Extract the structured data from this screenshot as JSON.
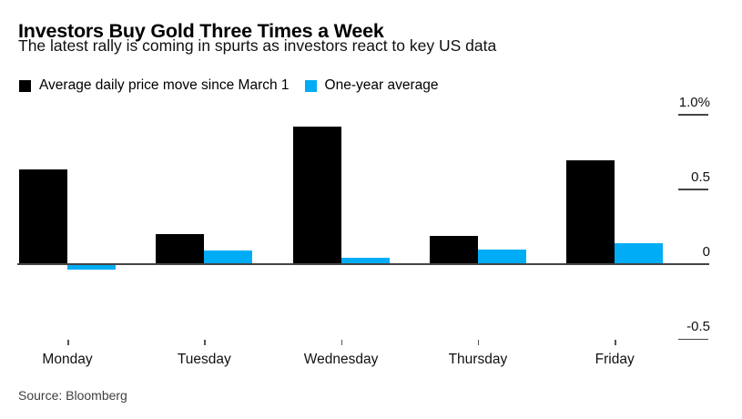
{
  "header": {
    "title": "Investors Buy Gold Three Times a Week",
    "subtitle": "The latest rally is coming in spurts as investors react to key US data"
  },
  "source": "Source: Bloomberg",
  "chart_data": {
    "type": "bar",
    "title": "Investors Buy Gold Three Times a Week",
    "subtitle": "The latest rally is coming in spurts as investors react to key US data",
    "unit": "%",
    "categories": [
      "Monday",
      "Tuesday",
      "Wednesday",
      "Thursday",
      "Friday"
    ],
    "series": [
      {
        "name": "Average daily price move since March 1",
        "color": "#000000",
        "values": [
          0.63,
          0.2,
          0.92,
          0.19,
          0.69
        ]
      },
      {
        "name": "One-year average",
        "color": "#00acf6",
        "values": [
          -0.03,
          0.09,
          0.04,
          0.1,
          0.14
        ]
      }
    ],
    "y_axis": {
      "position": "right",
      "ylim": [
        -0.5,
        1.0
      ],
      "ticks": [
        {
          "label": "1.0%",
          "value": 1.0
        },
        {
          "label": "0.5",
          "value": 0.5
        },
        {
          "label": "0",
          "value": 0
        },
        {
          "label": "-0.5",
          "value": -0.5
        }
      ]
    },
    "grid": false,
    "legend_position": "top-left",
    "source": "Source: Bloomberg"
  }
}
